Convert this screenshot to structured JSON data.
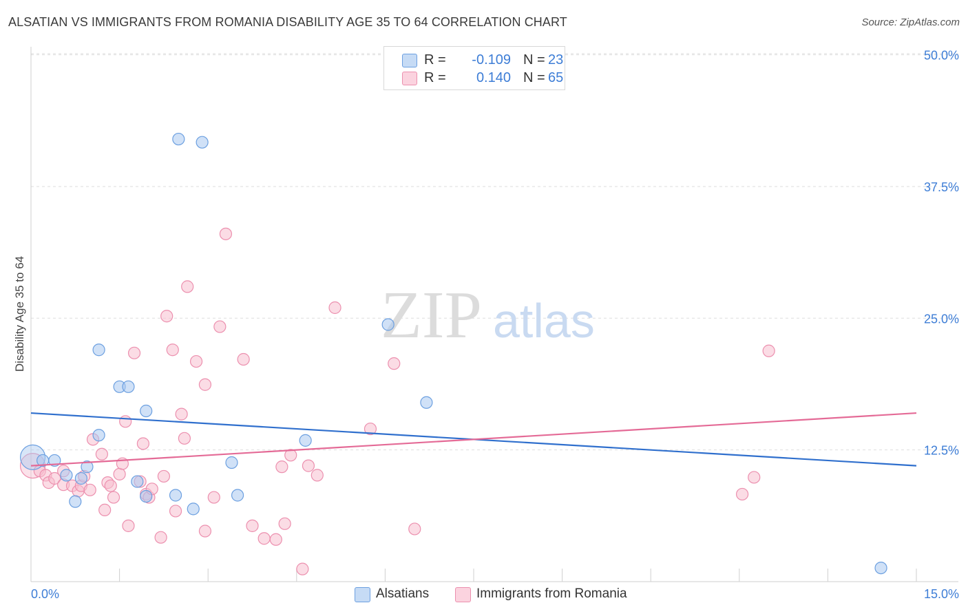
{
  "header": {
    "title": "ALSATIAN VS IMMIGRANTS FROM ROMANIA DISABILITY AGE 35 TO 64 CORRELATION CHART",
    "source": "Source: ZipAtlas.com"
  },
  "watermark": {
    "zip": "ZIP",
    "atlas": "atlas"
  },
  "legend": {
    "alsatians": {
      "r_label": "R =",
      "r_value": "-0.109",
      "n_label": "N =",
      "n_value": "23"
    },
    "romania": {
      "r_label": "R =",
      "r_value": "0.140",
      "n_label": "N =",
      "n_value": "65"
    }
  },
  "bottom_legend": {
    "alsatians": "Alsatians",
    "romania": "Immigrants from Romania"
  },
  "colors": {
    "blue_fill": "#a9c8f0",
    "blue_stroke": "#6b9fe0",
    "blue_line": "#2f6fcd",
    "pink_fill": "#f7bfd0",
    "pink_stroke": "#ec8fae",
    "pink_line": "#e46a96",
    "tick": "#3d7dd6",
    "grid": "#dddddd"
  },
  "chart_data": {
    "type": "scatter",
    "title": "ALSATIAN VS IMMIGRANTS FROM ROMANIA DISABILITY AGE 35 TO 64 CORRELATION CHART",
    "xlabel": "",
    "ylabel": "Disability Age 35 to 64",
    "xlim": [
      0,
      15
    ],
    "ylim": [
      0,
      52
    ],
    "x_tick_labels": [
      "0.0%",
      "15.0%"
    ],
    "y_ticks": [
      12.5,
      25.0,
      37.5,
      50.0
    ],
    "y_tick_labels": [
      "12.5%",
      "25.0%",
      "37.5%",
      "50.0%"
    ],
    "grid": "horizontal dashed",
    "series": [
      {
        "name": "Alsatians",
        "r": -0.109,
        "n": 23,
        "trend": {
          "x": [
            0.0,
            15.0
          ],
          "y": [
            16.0,
            11.0
          ]
        },
        "points": [
          {
            "x": 0.03,
            "y": 11.8,
            "big": true
          },
          {
            "x": 0.2,
            "y": 11.5
          },
          {
            "x": 0.4,
            "y": 11.5
          },
          {
            "x": 0.6,
            "y": 10.1
          },
          {
            "x": 0.75,
            "y": 7.6
          },
          {
            "x": 0.85,
            "y": 9.8
          },
          {
            "x": 0.95,
            "y": 10.9
          },
          {
            "x": 1.15,
            "y": 13.9
          },
          {
            "x": 1.15,
            "y": 22.0
          },
          {
            "x": 1.5,
            "y": 18.5
          },
          {
            "x": 1.65,
            "y": 18.5
          },
          {
            "x": 1.8,
            "y": 9.5
          },
          {
            "x": 1.95,
            "y": 8.1
          },
          {
            "x": 1.95,
            "y": 16.2
          },
          {
            "x": 2.45,
            "y": 8.2
          },
          {
            "x": 2.5,
            "y": 42.0
          },
          {
            "x": 2.75,
            "y": 6.9
          },
          {
            "x": 2.9,
            "y": 41.7
          },
          {
            "x": 3.4,
            "y": 11.3
          },
          {
            "x": 3.5,
            "y": 8.2
          },
          {
            "x": 4.65,
            "y": 13.4
          },
          {
            "x": 6.05,
            "y": 24.4
          },
          {
            "x": 6.7,
            "y": 17.0
          },
          {
            "x": 14.4,
            "y": 1.3
          }
        ]
      },
      {
        "name": "Immigrants from Romania",
        "r": 0.14,
        "n": 65,
        "trend": {
          "x": [
            0.0,
            15.0
          ],
          "y": [
            11.0,
            16.0
          ]
        },
        "points": [
          {
            "x": 0.03,
            "y": 11.0,
            "big": true
          },
          {
            "x": 0.15,
            "y": 10.5
          },
          {
            "x": 0.25,
            "y": 10.1
          },
          {
            "x": 0.3,
            "y": 9.4
          },
          {
            "x": 0.4,
            "y": 9.8
          },
          {
            "x": 0.55,
            "y": 10.5
          },
          {
            "x": 0.55,
            "y": 9.2
          },
          {
            "x": 0.7,
            "y": 9.1
          },
          {
            "x": 0.8,
            "y": 8.6
          },
          {
            "x": 0.85,
            "y": 9.1
          },
          {
            "x": 0.9,
            "y": 10.0
          },
          {
            "x": 1.0,
            "y": 8.7
          },
          {
            "x": 1.05,
            "y": 13.5
          },
          {
            "x": 1.2,
            "y": 12.1
          },
          {
            "x": 1.25,
            "y": 6.8
          },
          {
            "x": 1.3,
            "y": 9.4
          },
          {
            "x": 1.35,
            "y": 9.1
          },
          {
            "x": 1.4,
            "y": 8.0
          },
          {
            "x": 1.5,
            "y": 10.2
          },
          {
            "x": 1.55,
            "y": 11.2
          },
          {
            "x": 1.6,
            "y": 15.2
          },
          {
            "x": 1.65,
            "y": 5.3
          },
          {
            "x": 1.75,
            "y": 21.7
          },
          {
            "x": 1.85,
            "y": 9.5
          },
          {
            "x": 1.9,
            "y": 13.1
          },
          {
            "x": 1.95,
            "y": 8.3
          },
          {
            "x": 2.0,
            "y": 8.0
          },
          {
            "x": 2.05,
            "y": 8.8
          },
          {
            "x": 2.2,
            "y": 4.2
          },
          {
            "x": 2.25,
            "y": 10.0
          },
          {
            "x": 2.3,
            "y": 25.2
          },
          {
            "x": 2.4,
            "y": 22.0
          },
          {
            "x": 2.45,
            "y": 6.7
          },
          {
            "x": 2.55,
            "y": 15.9
          },
          {
            "x": 2.6,
            "y": 13.6
          },
          {
            "x": 2.65,
            "y": 28.0
          },
          {
            "x": 2.8,
            "y": 20.9
          },
          {
            "x": 2.95,
            "y": 4.8
          },
          {
            "x": 2.95,
            "y": 18.7
          },
          {
            "x": 3.1,
            "y": 8.0
          },
          {
            "x": 3.2,
            "y": 24.2
          },
          {
            "x": 3.3,
            "y": 33.0
          },
          {
            "x": 3.6,
            "y": 21.1
          },
          {
            "x": 3.75,
            "y": 5.3
          },
          {
            "x": 3.95,
            "y": 4.1
          },
          {
            "x": 4.15,
            "y": 4.0
          },
          {
            "x": 4.25,
            "y": 10.9
          },
          {
            "x": 4.3,
            "y": 5.5
          },
          {
            "x": 4.4,
            "y": 12.0
          },
          {
            "x": 4.6,
            "y": 1.2
          },
          {
            "x": 4.7,
            "y": 11.0
          },
          {
            "x": 4.85,
            "y": 10.1
          },
          {
            "x": 5.15,
            "y": 26.0
          },
          {
            "x": 5.75,
            "y": 14.5
          },
          {
            "x": 6.15,
            "y": 20.7
          },
          {
            "x": 6.5,
            "y": 5.0
          },
          {
            "x": 12.05,
            "y": 8.3
          },
          {
            "x": 12.25,
            "y": 9.9
          },
          {
            "x": 12.5,
            "y": 21.9
          }
        ]
      }
    ]
  }
}
